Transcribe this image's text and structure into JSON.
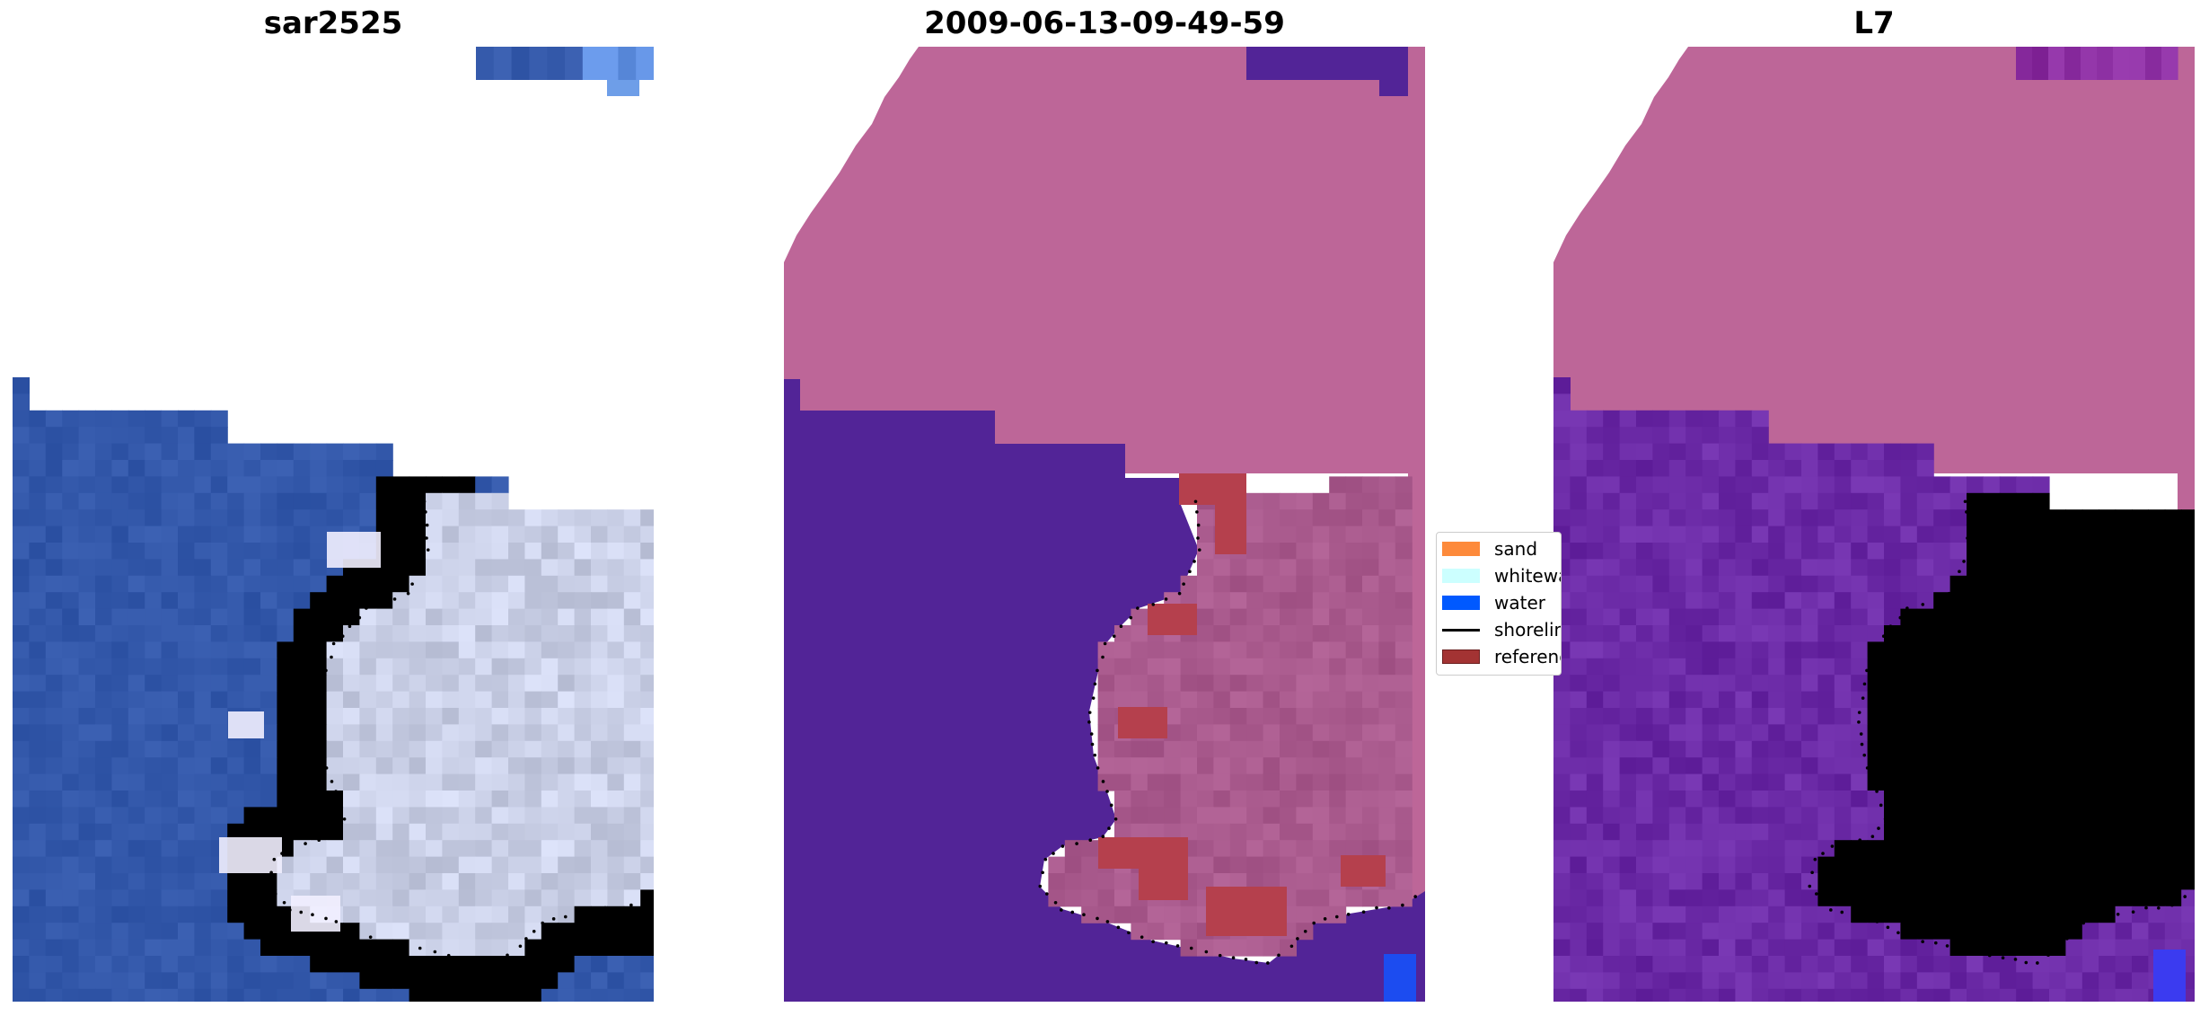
{
  "panels": [
    {
      "id": "rgb",
      "title": "sar2525"
    },
    {
      "id": "classified",
      "title": "2009-06-13-09-49-59"
    },
    {
      "id": "index",
      "title": "L7"
    }
  ],
  "legend": {
    "items": [
      {
        "label": "sand",
        "color": "#fd8a3b",
        "kind": "patch"
      },
      {
        "label": "whitewater",
        "color": "#ccffff",
        "kind": "patch"
      },
      {
        "label": "water",
        "color": "#0059ff",
        "kind": "patch"
      },
      {
        "label": "shoreline",
        "color": "#000000",
        "kind": "line"
      },
      {
        "label": "reference",
        "color": "#a33333",
        "kind": "patch",
        "edge": "#6b1f1f"
      }
    ]
  },
  "colors": {
    "water_rgb": "#3358aa",
    "surf_rgb": "#c9cfe6",
    "nodata_class": "#bd6698",
    "water_class": "#522497",
    "sand_overlay": "#b5404d",
    "index_water": "#6b2aa6",
    "index_land": "#c0123a",
    "shoreline": "#000000"
  }
}
